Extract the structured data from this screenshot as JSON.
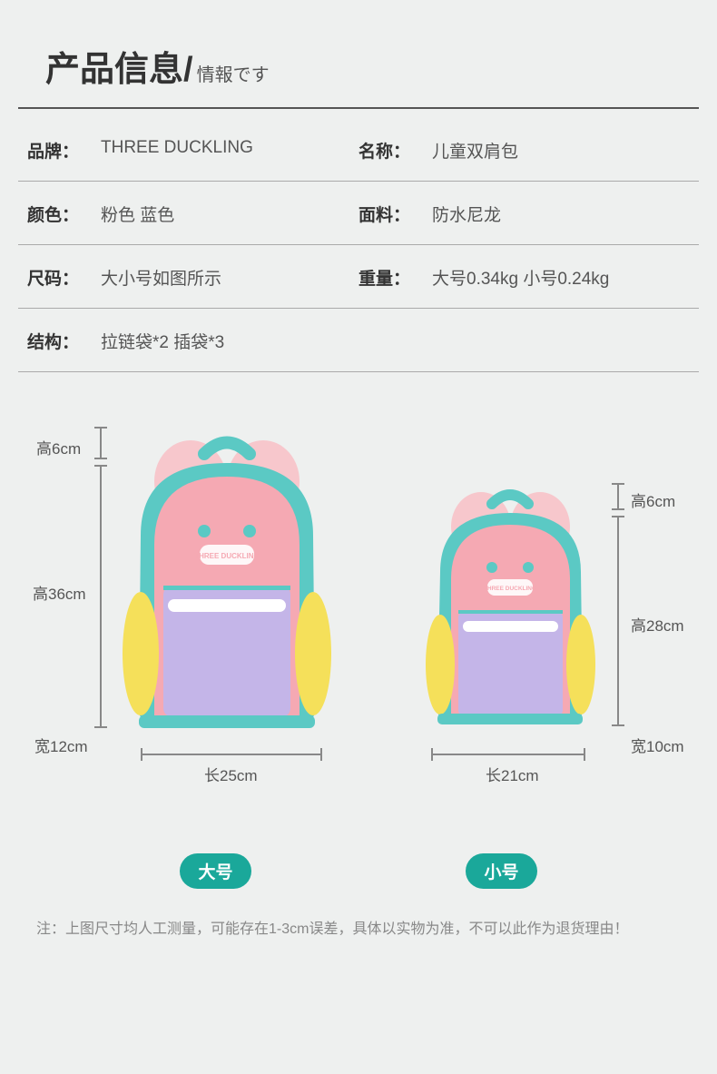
{
  "header": {
    "title_main": "产品信息",
    "title_sep": "/",
    "title_sub": "情報です"
  },
  "specs": [
    [
      {
        "label": "品牌：",
        "value": "THREE DUCKLING"
      },
      {
        "label": "名称：",
        "value": "儿童双肩包"
      }
    ],
    [
      {
        "label": "颜色：",
        "value": "粉色 蓝色"
      },
      {
        "label": "面料：",
        "value": "防水尼龙"
      }
    ],
    [
      {
        "label": "尺码：",
        "value": "大小号如图所示"
      },
      {
        "label": "重量：",
        "value": "大号0.34kg 小号0.24kg"
      }
    ],
    [
      {
        "label": "结构：",
        "value": "拉链袋*2 插袋*3"
      }
    ]
  ],
  "diagram": {
    "bag_colors": {
      "body_teal": "#5bc9c4",
      "body_pink": "#f5a9b3",
      "pocket_lilac": "#c4b5e8",
      "side_yellow": "#f5e05a",
      "strap_pink": "#f7c7cc",
      "zipper_white": "#ffffff",
      "logo_white": "#ffffff",
      "logo_text": "THREE DUCKLING"
    },
    "large": {
      "body_w": 230,
      "body_h": 300,
      "dims": {
        "handle_h": "高6cm",
        "body_h": "高36cm",
        "depth": "宽12cm",
        "length": "长25cm"
      },
      "badge_label": "大号",
      "badge_color": "#1aa89a"
    },
    "small": {
      "body_w": 190,
      "body_h": 240,
      "dims": {
        "handle_h": "高6cm",
        "body_h": "高28cm",
        "depth": "宽10cm",
        "length": "长21cm"
      },
      "badge_label": "小号",
      "badge_color": "#1aa89a"
    },
    "dim_line_color": "#888888"
  },
  "note": {
    "label": "注：",
    "text": "上图尺寸均人工测量，可能存在1-3cm误差，具体以实物为准，不可以此作为退货理由！"
  }
}
